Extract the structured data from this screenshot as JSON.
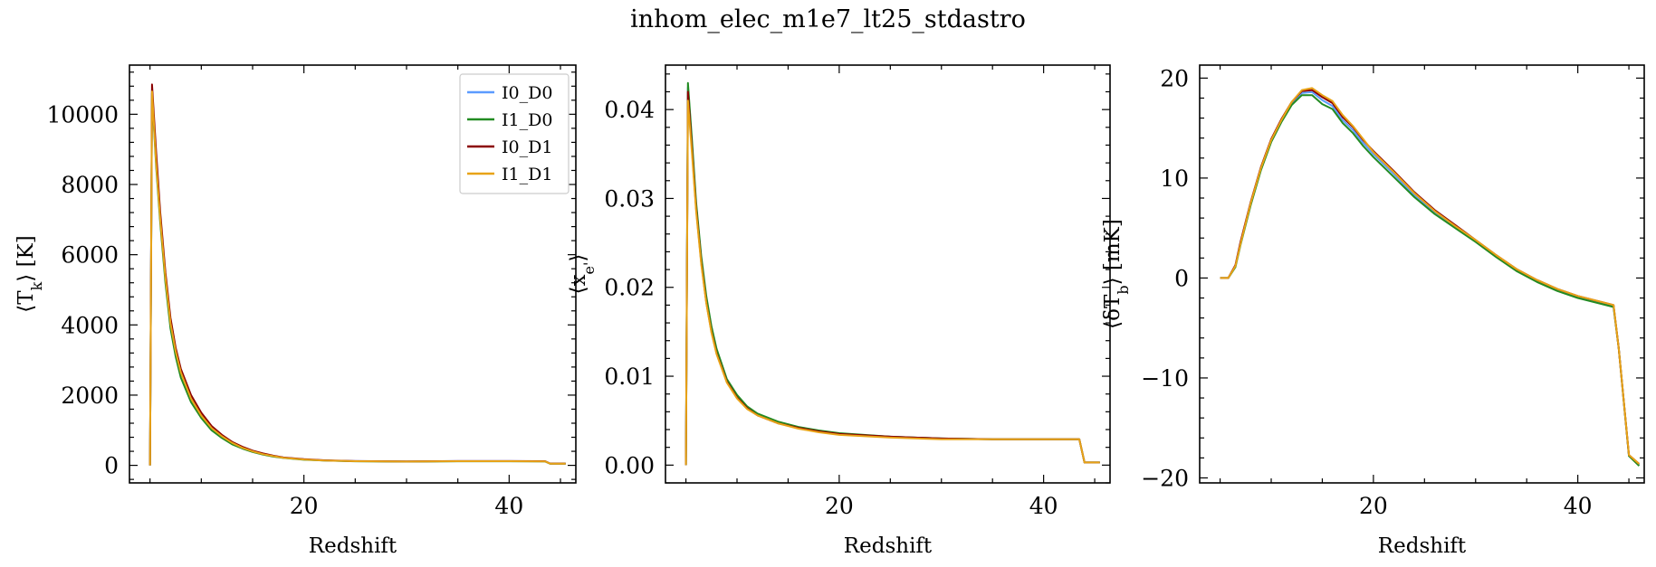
{
  "figure": {
    "title": "inhom_elec_m1e7_lt25_stdastro"
  },
  "colors": {
    "I0_D0": "#5b9bff",
    "I1_D0": "#228b22",
    "I0_D1": "#8b0000",
    "I1_D1": "#e8a317"
  },
  "chart_data": [
    {
      "type": "line",
      "xlabel": "Redshift",
      "ylabel": "⟨T_k⟩ [K]",
      "xlim": [
        3,
        46.5
      ],
      "ylim": [
        -500,
        11400
      ],
      "xticks": [
        20,
        40
      ],
      "yticks": [
        0,
        2000,
        4000,
        6000,
        8000,
        10000
      ],
      "xtick_labels": [
        "20",
        "40"
      ],
      "ytick_labels": [
        "0",
        "2000",
        "4000",
        "6000",
        "8000",
        "10000"
      ],
      "grid": false,
      "legend": {
        "placement": "top-right",
        "entries": [
          "I0_D0",
          "I1_D0",
          "I0_D1",
          "I1_D1"
        ]
      },
      "series": [
        {
          "name": "I0_D0",
          "color": "#5b9bff",
          "x": [
            5,
            5.2,
            5.6,
            6,
            6.5,
            7,
            7.5,
            8,
            9,
            10,
            11,
            12,
            13,
            14,
            15,
            16,
            17,
            18,
            20,
            22,
            25,
            30,
            35,
            40,
            43.5,
            44,
            45.5
          ],
          "y": [
            0,
            10700,
            8700,
            7100,
            5400,
            4100,
            3300,
            2700,
            1950,
            1450,
            1100,
            850,
            650,
            520,
            410,
            330,
            270,
            220,
            170,
            140,
            120,
            110,
            120,
            120,
            115,
            50,
            50
          ]
        },
        {
          "name": "I1_D0",
          "color": "#228b22",
          "x": [
            5,
            5.2,
            5.6,
            6,
            6.5,
            7,
            7.5,
            8,
            9,
            10,
            11,
            12,
            13,
            14,
            15,
            16,
            17,
            18,
            20,
            22,
            25,
            30,
            35,
            40,
            43.5,
            44,
            45.5
          ],
          "y": [
            0,
            10600,
            8500,
            6900,
            5200,
            3900,
            3100,
            2500,
            1800,
            1350,
            1000,
            780,
            600,
            480,
            380,
            310,
            250,
            210,
            160,
            135,
            115,
            105,
            115,
            115,
            110,
            45,
            45
          ]
        },
        {
          "name": "I0_D1",
          "color": "#8b0000",
          "x": [
            5,
            5.2,
            5.6,
            6,
            6.5,
            7,
            7.5,
            8,
            9,
            10,
            11,
            12,
            13,
            14,
            15,
            16,
            17,
            18,
            20,
            22,
            25,
            30,
            35,
            40,
            43.5,
            44,
            45.5
          ],
          "y": [
            0,
            10850,
            8900,
            7200,
            5500,
            4200,
            3350,
            2750,
            2000,
            1500,
            1120,
            870,
            670,
            530,
            420,
            340,
            275,
            225,
            175,
            145,
            122,
            112,
            122,
            122,
            117,
            52,
            52
          ]
        },
        {
          "name": "I1_D1",
          "color": "#e8a317",
          "x": [
            5,
            5.2,
            5.6,
            6,
            6.5,
            7,
            7.5,
            8,
            9,
            10,
            11,
            12,
            13,
            14,
            15,
            16,
            17,
            18,
            20,
            22,
            25,
            30,
            35,
            40,
            43.5,
            44,
            45.5
          ],
          "y": [
            0,
            10650,
            8600,
            7000,
            5350,
            4050,
            3250,
            2650,
            1900,
            1420,
            1060,
            830,
            640,
            500,
            400,
            320,
            262,
            215,
            168,
            140,
            118,
            108,
            118,
            118,
            113,
            48,
            48
          ]
        }
      ]
    },
    {
      "type": "line",
      "xlabel": "Redshift",
      "ylabel": "⟨x_e'⟩",
      "xlim": [
        3,
        46.5
      ],
      "ylim": [
        -0.002,
        0.045
      ],
      "xticks": [
        20,
        40
      ],
      "yticks": [
        0,
        0.01,
        0.02,
        0.03,
        0.04
      ],
      "xtick_labels": [
        "20",
        "40"
      ],
      "ytick_labels": [
        "0.00",
        "0.01",
        "0.02",
        "0.03",
        "0.04"
      ],
      "grid": false,
      "series": [
        {
          "name": "I0_D0",
          "color": "#5b9bff",
          "x": [
            5,
            5.2,
            5.6,
            6,
            6.5,
            7,
            7.5,
            8,
            9,
            10,
            11,
            12,
            14,
            16,
            18,
            20,
            25,
            30,
            35,
            40,
            43.5,
            44,
            45.5
          ],
          "y": [
            0,
            0.0425,
            0.036,
            0.029,
            0.023,
            0.0185,
            0.0152,
            0.0128,
            0.0095,
            0.0077,
            0.0065,
            0.0057,
            0.0048,
            0.0042,
            0.0038,
            0.0035,
            0.0032,
            0.003,
            0.0029,
            0.0029,
            0.0029,
            0.0003,
            0.0003
          ]
        },
        {
          "name": "I1_D0",
          "color": "#228b22",
          "x": [
            5,
            5.2,
            5.6,
            6,
            6.5,
            7,
            7.5,
            8,
            9,
            10,
            11,
            12,
            14,
            16,
            18,
            20,
            25,
            30,
            35,
            40,
            43.5,
            44,
            45.5
          ],
          "y": [
            0,
            0.043,
            0.0365,
            0.0295,
            0.0235,
            0.019,
            0.0156,
            0.0131,
            0.0097,
            0.0079,
            0.0066,
            0.0058,
            0.0049,
            0.0043,
            0.0039,
            0.0036,
            0.0032,
            0.003,
            0.0029,
            0.0029,
            0.0029,
            0.0003,
            0.0003
          ]
        },
        {
          "name": "I0_D1",
          "color": "#8b0000",
          "x": [
            5,
            5.2,
            5.6,
            6,
            6.5,
            7,
            7.5,
            8,
            9,
            10,
            11,
            12,
            14,
            16,
            18,
            20,
            25,
            30,
            35,
            40,
            43.5,
            44,
            45.5
          ],
          "y": [
            0,
            0.042,
            0.0355,
            0.0288,
            0.0228,
            0.0183,
            0.015,
            0.0126,
            0.0094,
            0.0076,
            0.0064,
            0.0056,
            0.0047,
            0.0042,
            0.0038,
            0.0035,
            0.0032,
            0.003,
            0.0029,
            0.0029,
            0.0029,
            0.0003,
            0.0003
          ]
        },
        {
          "name": "I1_D1",
          "color": "#e8a317",
          "x": [
            5,
            5.2,
            5.6,
            6,
            6.5,
            7,
            7.5,
            8,
            9,
            10,
            11,
            12,
            14,
            16,
            18,
            20,
            25,
            30,
            35,
            40,
            43.5,
            44,
            45.5
          ],
          "y": [
            0,
            0.041,
            0.035,
            0.0285,
            0.0226,
            0.0182,
            0.0149,
            0.0125,
            0.0093,
            0.0075,
            0.0063,
            0.0056,
            0.0047,
            0.0041,
            0.0037,
            0.0034,
            0.0031,
            0.0029,
            0.0029,
            0.0029,
            0.0029,
            0.0003,
            0.0003
          ]
        }
      ]
    },
    {
      "type": "line",
      "xlabel": "Redshift",
      "ylabel": "⟨δT_b⟩ [mK]",
      "xlim": [
        3,
        46.5
      ],
      "ylim": [
        -20.5,
        21.3
      ],
      "xticks": [
        20,
        40
      ],
      "yticks": [
        -20,
        -10,
        0,
        10,
        20
      ],
      "xtick_labels": [
        "20",
        "40"
      ],
      "ytick_labels": [
        "−20",
        "−10",
        "0",
        "10",
        "20"
      ],
      "grid": false,
      "series": [
        {
          "name": "I0_D0",
          "color": "#5b9bff",
          "x": [
            5,
            5.8,
            6.5,
            7,
            8,
            9,
            10,
            11,
            12,
            13,
            14,
            15,
            16,
            17,
            18,
            19,
            20,
            22,
            24,
            26,
            28,
            30,
            32,
            34,
            36,
            38,
            40,
            43.5,
            44,
            45,
            46
          ],
          "y": [
            0,
            0,
            1.2,
            3.5,
            7.5,
            11,
            13.8,
            15.8,
            17.5,
            18.5,
            18.6,
            17.8,
            17.2,
            15.8,
            14.8,
            13.5,
            12.4,
            10.4,
            8.3,
            6.6,
            5.1,
            3.7,
            2.2,
            0.8,
            -0.3,
            -1.2,
            -1.9,
            -2.8,
            -7,
            -17.8,
            -18.7
          ]
        },
        {
          "name": "I1_D0",
          "color": "#228b22",
          "x": [
            5,
            5.8,
            6.5,
            7,
            8,
            9,
            10,
            11,
            12,
            13,
            14,
            15,
            16,
            17,
            18,
            19,
            20,
            22,
            24,
            26,
            28,
            30,
            32,
            34,
            36,
            38,
            40,
            43.5,
            44,
            45,
            46
          ],
          "y": [
            0,
            0,
            1.1,
            3.3,
            7.3,
            10.8,
            13.6,
            15.6,
            17.3,
            18.3,
            18.3,
            17.4,
            16.9,
            15.5,
            14.5,
            13.2,
            12.1,
            10.1,
            8.1,
            6.4,
            5.0,
            3.6,
            2.1,
            0.7,
            -0.4,
            -1.3,
            -2.0,
            -2.9,
            -7,
            -17.8,
            -18.8
          ]
        },
        {
          "name": "I0_D1",
          "color": "#8b0000",
          "x": [
            5,
            5.8,
            6.5,
            7,
            8,
            9,
            10,
            11,
            12,
            13,
            14,
            15,
            16,
            17,
            18,
            19,
            20,
            22,
            24,
            26,
            28,
            30,
            32,
            34,
            36,
            38,
            40,
            43.5,
            44,
            45,
            46
          ],
          "y": [
            0,
            0,
            1.3,
            3.6,
            7.6,
            11.1,
            13.9,
            15.9,
            17.6,
            18.7,
            18.8,
            18.1,
            17.5,
            16.1,
            15.1,
            13.8,
            12.7,
            10.7,
            8.6,
            6.8,
            5.3,
            3.8,
            2.3,
            0.9,
            -0.2,
            -1.1,
            -1.8,
            -2.7,
            -7,
            -17.7,
            -18.6
          ]
        },
        {
          "name": "I1_D1",
          "color": "#e8a317",
          "x": [
            5,
            5.8,
            6.5,
            7,
            8,
            9,
            10,
            11,
            12,
            13,
            14,
            15,
            16,
            17,
            18,
            19,
            20,
            22,
            24,
            26,
            28,
            30,
            32,
            34,
            36,
            38,
            40,
            43.5,
            44,
            45,
            46
          ],
          "y": [
            0,
            0,
            1.2,
            3.4,
            7.5,
            11.0,
            13.8,
            15.8,
            17.6,
            18.8,
            19.0,
            18.3,
            17.7,
            16.3,
            15.2,
            13.9,
            12.6,
            10.6,
            8.5,
            6.7,
            5.2,
            3.8,
            2.3,
            0.9,
            -0.2,
            -1.1,
            -1.8,
            -2.7,
            -7,
            -17.7,
            -18.6
          ]
        }
      ]
    }
  ]
}
